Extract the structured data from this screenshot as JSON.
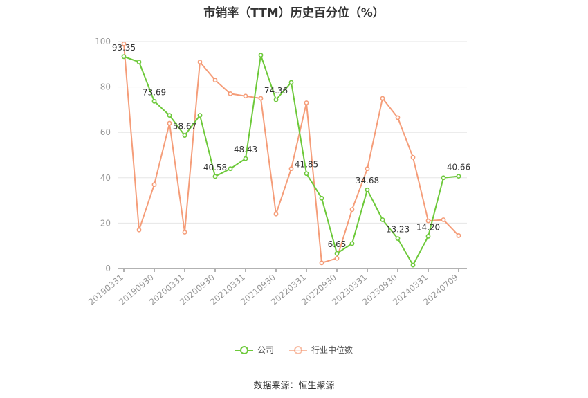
{
  "title": "市销率（TTM）历史百分位（%）",
  "source": "数据来源：恒生聚源",
  "colors": {
    "company": "#6dc93a",
    "industry": "#f4926a",
    "grid": "#e6e6e6",
    "axis": "#999999"
  },
  "chart_data": {
    "type": "line",
    "title": "市销率（TTM）历史百分位（%）",
    "ylim": [
      0,
      100
    ],
    "yticks": [
      0,
      20,
      40,
      60,
      80,
      100
    ],
    "xtick_labels": [
      "20190331",
      "20190930",
      "20200331",
      "20200930",
      "20210331",
      "20210930",
      "20220331",
      "20220930",
      "20230331",
      "20230930",
      "20240331",
      "20240709"
    ],
    "series": [
      {
        "name": "公司",
        "values": [
          93.35,
          91,
          73.69,
          67.5,
          58.67,
          67.5,
          40.58,
          44,
          48.43,
          94,
          74.36,
          82,
          41.85,
          31,
          6.65,
          11,
          34.68,
          21.5,
          13.23,
          1.5,
          14.2,
          40,
          40.66
        ],
        "labels": [
          "93.35",
          "",
          "73.69",
          "",
          "58.67",
          "",
          "40.58",
          "",
          "48.43",
          "",
          "74.36",
          "",
          "41.85",
          "",
          "6.65",
          "",
          "34.68",
          "",
          "13.23",
          "",
          "14.20",
          "",
          "40.66"
        ]
      },
      {
        "name": "行业中位数",
        "values": [
          99,
          17,
          37,
          64,
          16,
          91,
          83,
          77,
          76,
          75,
          24,
          44,
          73,
          2.5,
          4.5,
          26,
          44,
          75,
          66.5,
          49,
          21,
          21.5,
          14.5
        ]
      }
    ],
    "legend": [
      "公司",
      "行业中位数"
    ],
    "legend_position": "bottom"
  }
}
